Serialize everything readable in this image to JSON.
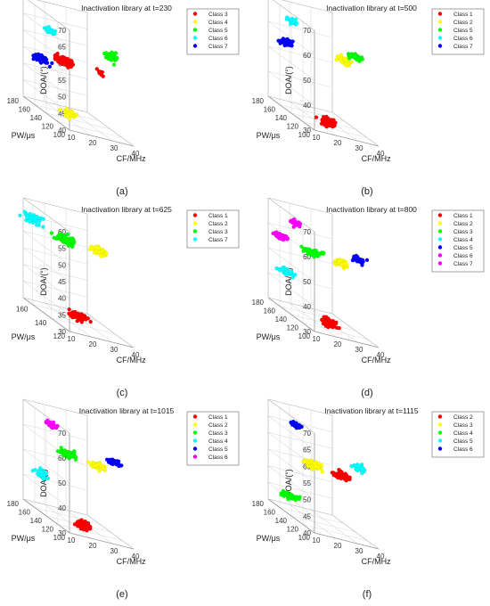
{
  "chart_data": [
    {
      "type": "scatter3d",
      "subfigure_label": "(a)",
      "title": "Inactivation library at t=230",
      "xlabel": "CF/MHz",
      "ylabel": "PW/μs",
      "zlabel": "DOA/(°)",
      "xlim": [
        10,
        40
      ],
      "ylim": [
        100,
        180
      ],
      "zlim": [
        40,
        70
      ],
      "xticks": [
        10,
        20,
        30,
        40
      ],
      "yticks": [
        100,
        120,
        140,
        160,
        180
      ],
      "zticks": [
        40,
        45,
        50,
        55,
        60,
        65,
        70
      ],
      "grid": true,
      "legend_position": "top-right",
      "series": [
        {
          "name": "Class 3",
          "color": "#ff0000",
          "clusters": [
            {
              "x": 18,
              "y": 140,
              "z": 57,
              "n": 70,
              "sx": 4,
              "sy": 8,
              "sz": 1.2
            },
            {
              "x": 30,
              "y": 120,
              "z": 58,
              "n": 10,
              "sx": 1.5,
              "sy": 4,
              "sz": 0.8
            }
          ]
        },
        {
          "name": "Class 4",
          "color": "#ffff00",
          "clusters": [
            {
              "x": 17,
              "y": 125,
              "z": 43,
              "n": 45,
              "sx": 2.5,
              "sy": 6,
              "sz": 1.0
            }
          ]
        },
        {
          "name": "Class 5",
          "color": "#00ff00",
          "clusters": [
            {
              "x": 30,
              "y": 100,
              "z": 65,
              "n": 45,
              "sx": 3,
              "sy": 6,
              "sz": 1.0
            }
          ]
        },
        {
          "name": "Class 6",
          "color": "#00ffff",
          "clusters": [
            {
              "x": 12,
              "y": 140,
              "z": 65,
              "n": 35,
              "sx": 2,
              "sy": 6,
              "sz": 0.8
            }
          ]
        },
        {
          "name": "Class 7",
          "color": "#0000ff",
          "clusters": [
            {
              "x": 10,
              "y": 150,
              "z": 55,
              "n": 60,
              "sx": 3,
              "sy": 8,
              "sz": 1.0
            }
          ]
        }
      ]
    },
    {
      "type": "scatter3d",
      "subfigure_label": "(b)",
      "title": "Inactivation library at t=500",
      "xlabel": "CF/MHz",
      "ylabel": "PW/μs",
      "zlabel": "DOA/(°)",
      "xlim": [
        10,
        40
      ],
      "ylim": [
        100,
        180
      ],
      "zlim": [
        30,
        70
      ],
      "xticks": [
        10,
        20,
        30,
        40
      ],
      "yticks": [
        100,
        120,
        140,
        160,
        180
      ],
      "zticks": [
        30,
        40,
        50,
        60,
        70
      ],
      "grid": true,
      "legend_position": "top-right",
      "series": [
        {
          "name": "Class 1",
          "color": "#ff0000",
          "clusters": [
            {
              "x": 20,
              "y": 115,
              "z": 33,
              "n": 70,
              "sx": 3,
              "sy": 6,
              "sz": 1.5
            }
          ]
        },
        {
          "name": "Class 2",
          "color": "#ffff00",
          "clusters": [
            {
              "x": 30,
              "y": 125,
              "z": 58,
              "n": 40,
              "sx": 2.5,
              "sy": 5,
              "sz": 1.2
            }
          ]
        },
        {
          "name": "Class 5",
          "color": "#00ff00",
          "clusters": [
            {
              "x": 32,
              "y": 110,
              "z": 62,
              "n": 45,
              "sx": 3,
              "sy": 6,
              "sz": 1.2
            }
          ]
        },
        {
          "name": "Class 6",
          "color": "#00ffff",
          "clusters": [
            {
              "x": 13,
              "y": 150,
              "z": 66,
              "n": 35,
              "sx": 2,
              "sy": 6,
              "sz": 1.0
            }
          ]
        },
        {
          "name": "Class 7",
          "color": "#0000ff",
          "clusters": [
            {
              "x": 10,
              "y": 150,
              "z": 57,
              "n": 50,
              "sx": 3,
              "sy": 7,
              "sz": 1.2
            }
          ]
        }
      ]
    },
    {
      "type": "scatter3d",
      "subfigure_label": "(c)",
      "title": "Inactivation library at t=625",
      "xlabel": "CF/MHz",
      "ylabel": "PW/μs",
      "zlabel": "DOA/(°)",
      "xlim": [
        10,
        40
      ],
      "ylim": [
        120,
        170
      ],
      "zlim": [
        30,
        60
      ],
      "xticks": [
        10,
        20,
        30,
        40
      ],
      "yticks": [
        120,
        140,
        160
      ],
      "zticks": [
        30,
        35,
        40,
        45,
        50,
        55,
        60
      ],
      "grid": true,
      "legend_position": "top-right",
      "series": [
        {
          "name": "Class 1",
          "color": "#ff0000",
          "clusters": [
            {
              "x": 21,
              "y": 135,
              "z": 33,
              "n": 70,
              "sx": 3,
              "sy": 5,
              "sz": 1.2
            }
          ]
        },
        {
          "name": "Class 2",
          "color": "#ffff00",
          "clusters": [
            {
              "x": 31,
              "y": 138,
              "z": 54,
              "n": 50,
              "sx": 3,
              "sy": 5,
              "sz": 1.0
            }
          ]
        },
        {
          "name": "Class 3",
          "color": "#00ff00",
          "clusters": [
            {
              "x": 19,
              "y": 145,
              "z": 54,
              "n": 80,
              "sx": 4,
              "sy": 6,
              "sz": 1.0
            }
          ]
        },
        {
          "name": "Class 7",
          "color": "#00ffff",
          "clusters": [
            {
              "x": 10,
              "y": 160,
              "z": 56,
              "n": 55,
              "sx": 3,
              "sy": 5,
              "sz": 1.0
            }
          ]
        }
      ]
    },
    {
      "type": "scatter3d",
      "subfigure_label": "(d)",
      "title": "Inactivation library at t=800",
      "xlabel": "CF/MHz",
      "ylabel": "PW/μs",
      "zlabel": "DOA/(°)",
      "xlim": [
        10,
        40
      ],
      "ylim": [
        100,
        180
      ],
      "zlim": [
        30,
        70
      ],
      "xticks": [
        10,
        20,
        30,
        40
      ],
      "yticks": [
        100,
        120,
        140,
        160,
        180
      ],
      "zticks": [
        30,
        40,
        50,
        60,
        70
      ],
      "grid": true,
      "legend_position": "top-right",
      "series": [
        {
          "name": "Class 1",
          "color": "#ff0000",
          "clusters": [
            {
              "x": 21,
              "y": 115,
              "z": 33,
              "n": 70,
              "sx": 3,
              "sy": 6,
              "sz": 1.5
            }
          ]
        },
        {
          "name": "Class 2",
          "color": "#ffff00",
          "clusters": [
            {
              "x": 30,
              "y": 125,
              "z": 57,
              "n": 45,
              "sx": 3,
              "sy": 5,
              "sz": 1.2
            }
          ]
        },
        {
          "name": "Class 3",
          "color": "#00ff00",
          "clusters": [
            {
              "x": 20,
              "y": 140,
              "z": 57,
              "n": 70,
              "sx": 4,
              "sy": 6,
              "sz": 1.2
            }
          ]
        },
        {
          "name": "Class 4",
          "color": "#00ffff",
          "clusters": [
            {
              "x": 12,
              "y": 155,
              "z": 45,
              "n": 45,
              "sx": 2.5,
              "sy": 6,
              "sz": 1.2
            }
          ]
        },
        {
          "name": "Class 5",
          "color": "#0000ff",
          "clusters": [
            {
              "x": 33,
              "y": 108,
              "z": 62,
              "n": 40,
              "sx": 2.5,
              "sy": 5,
              "sz": 1.2
            }
          ]
        },
        {
          "name": "Class 6",
          "color": "#ff00ff",
          "clusters": [
            {
              "x": 10,
              "y": 160,
              "z": 58,
              "n": 45,
              "sx": 3,
              "sy": 6,
              "sz": 1.0
            }
          ]
        },
        {
          "name": "Class 7",
          "color": "#ff00ff",
          "clusters": [
            {
              "x": 15,
              "y": 150,
              "z": 66,
              "n": 30,
              "sx": 2,
              "sy": 5,
              "sz": 1.0
            }
          ]
        }
      ]
    },
    {
      "type": "scatter3d",
      "subfigure_label": "(e)",
      "title": "Inactivation library at t=1015",
      "xlabel": "CF/MHz",
      "ylabel": "PW/μs",
      "zlabel": "DOA/(°)",
      "xlim": [
        10,
        40
      ],
      "ylim": [
        100,
        180
      ],
      "zlim": [
        30,
        70
      ],
      "xticks": [
        10,
        20,
        30,
        40
      ],
      "yticks": [
        100,
        120,
        140,
        160,
        180
      ],
      "zticks": [
        30,
        40,
        50,
        60,
        70
      ],
      "grid": true,
      "legend_position": "top-right",
      "series": [
        {
          "name": "Class 1",
          "color": "#ff0000",
          "clusters": [
            {
              "x": 21,
              "y": 115,
              "z": 33,
              "n": 70,
              "sx": 3,
              "sy": 6,
              "sz": 1.5
            }
          ]
        },
        {
          "name": "Class 2",
          "color": "#ffff00",
          "clusters": [
            {
              "x": 30,
              "y": 125,
              "z": 57,
              "n": 45,
              "sx": 3,
              "sy": 5,
              "sz": 1.2
            }
          ]
        },
        {
          "name": "Class 3",
          "color": "#00ff00",
          "clusters": [
            {
              "x": 20,
              "y": 140,
              "z": 57,
              "n": 70,
              "sx": 4,
              "sy": 6,
              "sz": 1.2
            }
          ]
        },
        {
          "name": "Class 4",
          "color": "#00ffff",
          "clusters": [
            {
              "x": 12,
              "y": 155,
              "z": 45,
              "n": 45,
              "sx": 2.5,
              "sy": 6,
              "sz": 1.2
            }
          ]
        },
        {
          "name": "Class 5",
          "color": "#0000ff",
          "clusters": [
            {
              "x": 33,
              "y": 108,
              "z": 62,
              "n": 40,
              "sx": 2.5,
              "sy": 5,
              "sz": 1.2
            }
          ]
        },
        {
          "name": "Class 6",
          "color": "#ff00ff",
          "clusters": [
            {
              "x": 15,
              "y": 150,
              "z": 66,
              "n": 30,
              "sx": 2,
              "sy": 5,
              "sz": 1.0
            }
          ]
        }
      ]
    },
    {
      "type": "scatter3d",
      "subfigure_label": "(f)",
      "title": "Inactivation library at t=1115",
      "xlabel": "CF/MHz",
      "ylabel": "PW/μs",
      "zlabel": "DOA/(°)",
      "xlim": [
        10,
        40
      ],
      "ylim": [
        100,
        180
      ],
      "zlim": [
        40,
        70
      ],
      "xticks": [
        10,
        20,
        30,
        40
      ],
      "yticks": [
        100,
        120,
        140,
        160,
        180
      ],
      "zticks": [
        40,
        45,
        50,
        55,
        60,
        65,
        70
      ],
      "grid": true,
      "legend_position": "top-right",
      "series": [
        {
          "name": "Class 2",
          "color": "#ff0000",
          "clusters": [
            {
              "x": 30,
              "y": 125,
              "z": 57,
              "n": 70,
              "sx": 3,
              "sy": 5,
              "sz": 1.2
            }
          ]
        },
        {
          "name": "Class 3",
          "color": "#ffff00",
          "clusters": [
            {
              "x": 20,
              "y": 140,
              "z": 57,
              "n": 80,
              "sx": 4,
              "sy": 6,
              "sz": 1.0
            }
          ]
        },
        {
          "name": "Class 4",
          "color": "#00ff00",
          "clusters": [
            {
              "x": 12,
              "y": 150,
              "z": 45,
              "n": 45,
              "sx": 2.5,
              "sy": 6,
              "sz": 1.0
            }
          ]
        },
        {
          "name": "Class 5",
          "color": "#00ffff",
          "clusters": [
            {
              "x": 34,
              "y": 110,
              "z": 62,
              "n": 35,
              "sx": 2.5,
              "sy": 5,
              "sz": 1.0
            }
          ]
        },
        {
          "name": "Class 6",
          "color": "#0000ff",
          "clusters": [
            {
              "x": 15,
              "y": 150,
              "z": 67,
              "n": 30,
              "sx": 2,
              "sy": 5,
              "sz": 0.8
            }
          ]
        }
      ]
    }
  ]
}
